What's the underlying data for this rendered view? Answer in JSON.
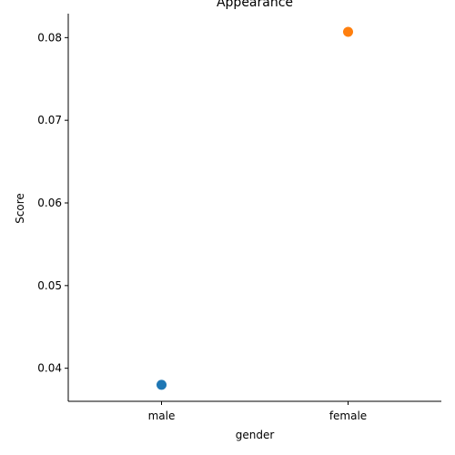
{
  "chart_data": {
    "type": "scatter",
    "title": "Appearance",
    "xlabel": "gender",
    "ylabel": "Score",
    "categories": [
      "male",
      "female"
    ],
    "values": [
      0.038,
      0.0807
    ],
    "point_colors": [
      "#1f77b4",
      "#ff7f0e"
    ],
    "ylim": [
      0.036,
      0.0829
    ],
    "yticks": [
      0.04,
      0.05,
      0.06,
      0.07,
      0.08
    ],
    "ytick_labels": [
      "0.04",
      "0.05",
      "0.06",
      "0.07",
      "0.08"
    ],
    "grid": false,
    "legend": "none"
  }
}
